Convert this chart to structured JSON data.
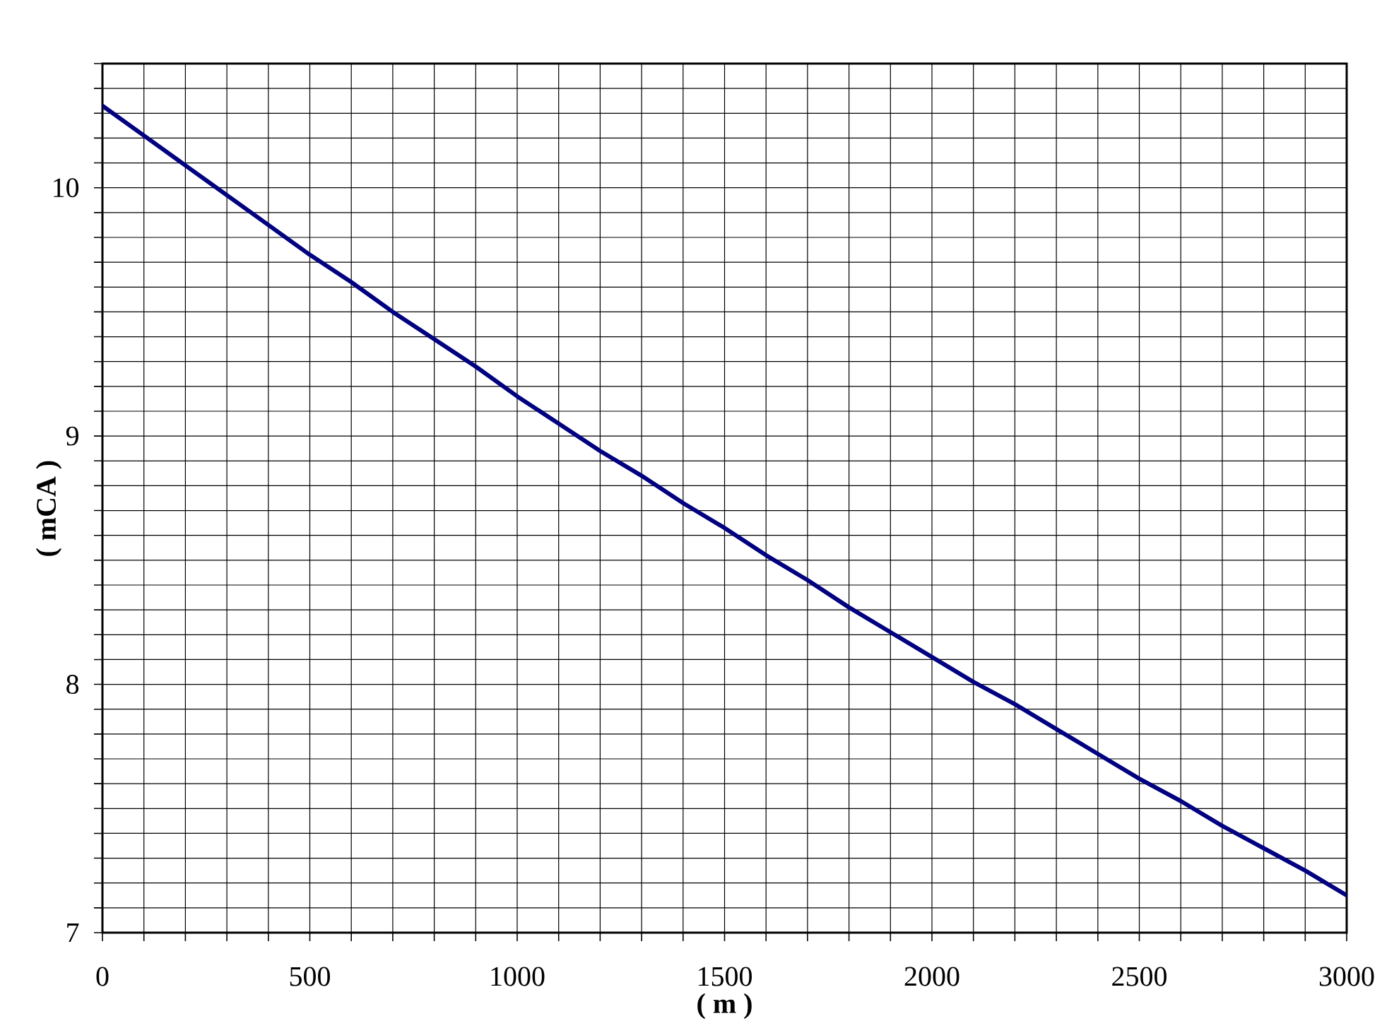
{
  "chart_data": {
    "type": "line",
    "xlabel": "( m )",
    "ylabel": "( mCA )",
    "x": [
      0,
      100,
      200,
      300,
      400,
      500,
      600,
      700,
      800,
      900,
      1000,
      1100,
      1200,
      1300,
      1400,
      1500,
      1600,
      1700,
      1800,
      1900,
      2000,
      2100,
      2200,
      2300,
      2400,
      2500,
      2600,
      2700,
      2800,
      2900,
      3000
    ],
    "values": [
      10.33,
      10.21,
      10.09,
      9.97,
      9.85,
      9.73,
      9.62,
      9.5,
      9.39,
      9.28,
      9.16,
      9.05,
      8.94,
      8.84,
      8.73,
      8.63,
      8.52,
      8.42,
      8.31,
      8.21,
      8.11,
      8.01,
      7.92,
      7.82,
      7.72,
      7.62,
      7.53,
      7.43,
      7.34,
      7.25,
      7.15
    ],
    "color": "#000080",
    "marker": "none",
    "line_style": "solid",
    "xlim": [
      0,
      3000
    ],
    "ylim": [
      7,
      10.5
    ],
    "xticks": [
      0,
      {
        "value": 100,
        "label": null
      },
      {
        "value": 200,
        "label": null
      },
      {
        "value": 300,
        "label": null
      },
      {
        "value": 400,
        "label": null
      },
      500,
      {
        "value": 600,
        "label": null
      },
      {
        "value": 700,
        "label": null
      },
      {
        "value": 800,
        "label": null
      },
      {
        "value": 900,
        "label": null
      },
      1000,
      {
        "value": 1100,
        "label": null
      },
      {
        "value": 1200,
        "label": null
      },
      {
        "value": 1300,
        "label": null
      },
      {
        "value": 1400,
        "label": null
      },
      1500,
      {
        "value": 1600,
        "label": null
      },
      {
        "value": 1700,
        "label": null
      },
      {
        "value": 1800,
        "label": null
      },
      {
        "value": 1900,
        "label": null
      },
      2000,
      {
        "value": 2100,
        "label": null
      },
      {
        "value": 2200,
        "label": null
      },
      {
        "value": 2300,
        "label": null
      },
      {
        "value": 2400,
        "label": null
      },
      2500,
      {
        "value": 2600,
        "label": null
      },
      {
        "value": 2700,
        "label": null
      },
      {
        "value": 2800,
        "label": null
      },
      {
        "value": 2900,
        "label": null
      },
      3000
    ],
    "yticks": [
      7,
      {
        "value": 7.1,
        "label": null
      },
      {
        "value": 7.2,
        "label": null
      },
      {
        "value": 7.3,
        "label": null
      },
      {
        "value": 7.4,
        "label": null
      },
      {
        "value": 7.5,
        "label": null
      },
      {
        "value": 7.6,
        "label": null
      },
      {
        "value": 7.7,
        "label": null
      },
      {
        "value": 7.8,
        "label": null
      },
      {
        "value": 7.9,
        "label": null
      },
      8,
      {
        "value": 8.1,
        "label": null
      },
      {
        "value": 8.2,
        "label": null
      },
      {
        "value": 8.3,
        "label": null
      },
      {
        "value": 8.4,
        "label": null
      },
      {
        "value": 8.5,
        "label": null
      },
      {
        "value": 8.6,
        "label": null
      },
      {
        "value": 8.7,
        "label": null
      },
      {
        "value": 8.8,
        "label": null
      },
      {
        "value": 8.9,
        "label": null
      },
      9,
      {
        "value": 9.1,
        "label": null
      },
      {
        "value": 9.2,
        "label": null
      },
      {
        "value": 9.3,
        "label": null
      },
      {
        "value": 9.4,
        "label": null
      },
      {
        "value": 9.5,
        "label": null
      },
      {
        "value": 9.6,
        "label": null
      },
      {
        "value": 9.7,
        "label": null
      },
      {
        "value": 9.8,
        "label": null
      },
      {
        "value": 9.9,
        "label": null
      },
      10,
      {
        "value": 10.1,
        "label": null
      },
      {
        "value": 10.2,
        "label": null
      },
      {
        "value": 10.3,
        "label": null
      },
      {
        "value": 10.4,
        "label": null
      },
      {
        "value": 10.5,
        "label": null
      }
    ],
    "grid": true
  }
}
